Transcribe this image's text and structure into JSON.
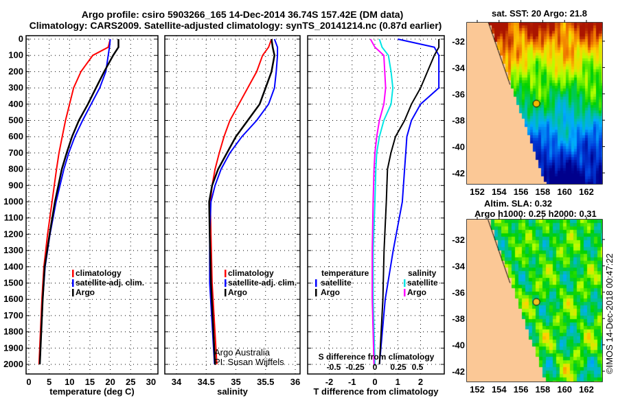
{
  "title_line1": "Argo profile: csiro 5903266_165 14-Dec-2014 36.74S 157.42E (DM data)",
  "title_line2": "Climatology: CARS2009. Satellite-adjusted climatology: synTS_20141214.nc (0.87d earlier)",
  "credit_line1": "Argo Australia",
  "credit_line2": "PI: Susan Wijffels",
  "copyright": "©IMOS 14-Dec-2018 00:47:22",
  "colors": {
    "climatology": "#ff0000",
    "satellite": "#0000ff",
    "argo": "#000000",
    "sal_satellite": "#00e5e5",
    "sal_argo": "#ff00ff"
  },
  "chart_data": [
    {
      "type": "line",
      "xlabel": "temperature (deg C)",
      "ylabel": "depth",
      "xlim": [
        -1,
        32
      ],
      "ylim": [
        2050,
        0
      ],
      "xticks": [
        "0",
        "5",
        "10",
        "15",
        "20",
        "25",
        "30"
      ],
      "yticks": [
        "0",
        "100",
        "200",
        "300",
        "400",
        "500",
        "600",
        "700",
        "800",
        "900",
        "1000",
        "1100",
        "1200",
        "1300",
        "1400",
        "1500",
        "1600",
        "1700",
        "1800",
        "1900",
        "2000"
      ],
      "legend": [
        "climatology",
        "satellite-adj. clim.",
        "Argo"
      ],
      "depth": [
        0,
        50,
        100,
        200,
        300,
        400,
        500,
        600,
        700,
        800,
        1000,
        1200,
        1400,
        1600,
        2000
      ],
      "series": [
        {
          "name": "climatology",
          "values": [
            20,
            19.5,
            15.7,
            12.8,
            11,
            10,
            9,
            8.2,
            7.4,
            6.8,
            5.7,
            4.6,
            3.7,
            3.2,
            2.5
          ]
        },
        {
          "name": "satellite-adj. clim.",
          "values": [
            20,
            19.8,
            19.5,
            18.9,
            17.4,
            15.3,
            13.2,
            11.3,
            9.8,
            8.6,
            6.7,
            5.2,
            4.0,
            3.4,
            2.7
          ]
        },
        {
          "name": "Argo",
          "values": [
            22,
            22,
            20.7,
            18.5,
            16.5,
            14.5,
            12.3,
            10.6,
            9.3,
            8.1,
            6.4,
            5.1,
            3.9,
            3.4,
            2.7
          ]
        }
      ]
    },
    {
      "type": "line",
      "xlabel": "salinity",
      "xlim": [
        33.8,
        36.1
      ],
      "ylim": [
        2050,
        0
      ],
      "xticks": [
        "34",
        "34.5",
        "35",
        "35.5",
        "36"
      ],
      "legend": [
        "climatology",
        "satellite-adj. clim.",
        "Argo"
      ],
      "depth": [
        0,
        50,
        100,
        200,
        300,
        400,
        500,
        600,
        700,
        800,
        900,
        1000,
        1200,
        1500,
        2000
      ],
      "series": [
        {
          "name": "climatology",
          "values": [
            35.6,
            35.55,
            35.45,
            35.35,
            35.2,
            35.05,
            34.9,
            34.8,
            34.72,
            34.65,
            34.6,
            34.57,
            34.58,
            34.6,
            34.68
          ]
        },
        {
          "name": "satellite-adj. clim.",
          "values": [
            35.65,
            35.7,
            35.7,
            35.68,
            35.65,
            35.55,
            35.35,
            35.1,
            34.9,
            34.75,
            34.65,
            34.58,
            34.56,
            34.56,
            34.64
          ]
        },
        {
          "name": "Argo",
          "values": [
            35.6,
            35.62,
            35.65,
            35.6,
            35.5,
            35.4,
            35.2,
            35.0,
            34.85,
            34.7,
            34.6,
            34.55,
            34.56,
            34.58,
            34.65
          ]
        }
      ]
    },
    {
      "type": "line",
      "xlabel": "T difference from climatology",
      "x2label": "S difference from climatology",
      "xlim": [
        -3,
        3
      ],
      "ylim": [
        2050,
        0
      ],
      "xticks": [
        "-2",
        "-1",
        "0",
        "1",
        "2"
      ],
      "x2ticks": [
        "-0.5",
        "-0.25",
        "0",
        "0.25",
        "0.5"
      ],
      "legend_temperature": {
        "title": "temperature",
        "items": [
          "satellite",
          "Argo"
        ]
      },
      "legend_salinity": {
        "title": "salinity",
        "items": [
          "satellite",
          "Argo"
        ]
      },
      "depth": [
        0,
        50,
        100,
        200,
        300,
        400,
        500,
        600,
        700,
        800,
        1000,
        1300,
        1600,
        2000
      ],
      "series": [
        {
          "name": "temperature satellite",
          "values": [
            1.0,
            2.6,
            2.8,
            2.8,
            2.8,
            2.0,
            1.6,
            1.4,
            1.35,
            1.3,
            1.2,
            0.8,
            0.45,
            0.2
          ]
        },
        {
          "name": "temperature Argo",
          "values": [
            2.8,
            2.8,
            2.6,
            2.3,
            2.0,
            1.6,
            1.3,
            0.9,
            0.7,
            0.55,
            0.5,
            0.4,
            0.35,
            0.2
          ]
        },
        {
          "name": "salinity satellite",
          "values": [
            0.05,
            0.08,
            0.15,
            0.18,
            0.2,
            0.18,
            0.1,
            0.05,
            0.02,
            0.01,
            0.0,
            -0.02,
            -0.02,
            0.0
          ]
        },
        {
          "name": "salinity Argo",
          "values": [
            -0.05,
            0.0,
            0.1,
            0.11,
            0.12,
            0.1,
            0.05,
            0.02,
            0.0,
            -0.01,
            -0.02,
            -0.03,
            -0.03,
            -0.01
          ]
        }
      ]
    }
  ],
  "maps": [
    {
      "title": "sat. SST: 20 Argo: 21.8",
      "xticks": [
        "152",
        "154",
        "156",
        "158",
        "160",
        "162"
      ],
      "yticks": [
        "-32",
        "-34",
        "-36",
        "-38",
        "-40",
        "-42"
      ],
      "marker": {
        "lon": 157.42,
        "lat": -36.74
      }
    },
    {
      "title_line1": "Altim. SLA: 0.32",
      "title_line2": "Argo h1000: 0.25 h2000: 0.31",
      "xticks": [
        "152",
        "154",
        "156",
        "158",
        "160",
        "162"
      ],
      "yticks": [
        "-32",
        "-34",
        "-36",
        "-38",
        "-40",
        "-42"
      ],
      "marker": {
        "lon": 157.42,
        "lat": -36.74
      }
    }
  ]
}
